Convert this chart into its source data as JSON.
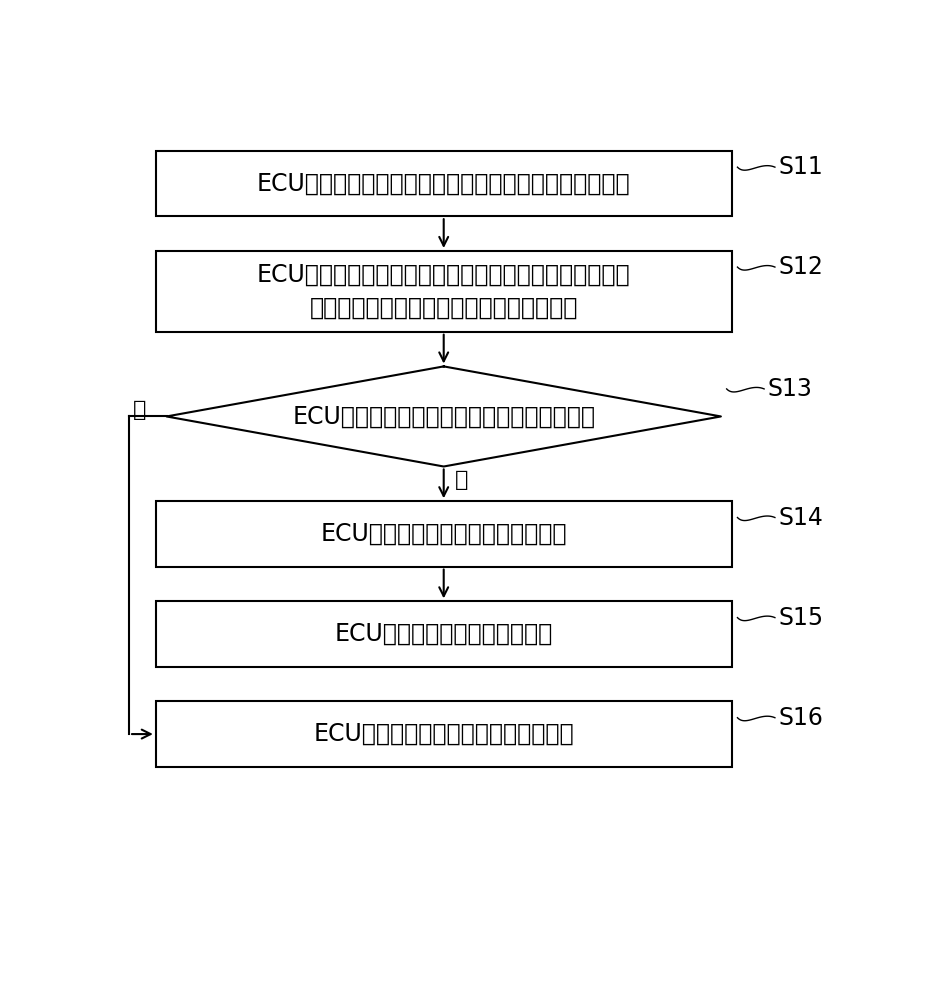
{
  "background_color": "#ffffff",
  "s11_label": "ECU获取当前环境温度、当前车辆工况以及当前中冷温度",
  "s12_label": "ECU根据当前环境温度以及当前车辆工况，利用中冷温度\n限值映射关系进行查询，确定中冷温度限值",
  "s13_label": "ECU判断当前中冷温度是否超过中冷温度限值",
  "s14_label": "ECU确定发动机排温超过排温安全值",
  "s15_label": "ECU对发动机排温进行降温控制",
  "s16_label": "ECU确定发动机排温未超过排温安全值",
  "yes_label": "是",
  "no_label": "否",
  "step_labels": [
    "S11",
    "S12",
    "S13",
    "S14",
    "S15",
    "S16"
  ],
  "line_color": "#000000",
  "text_color": "#000000",
  "font_size_main": 17,
  "font_size_step": 17
}
